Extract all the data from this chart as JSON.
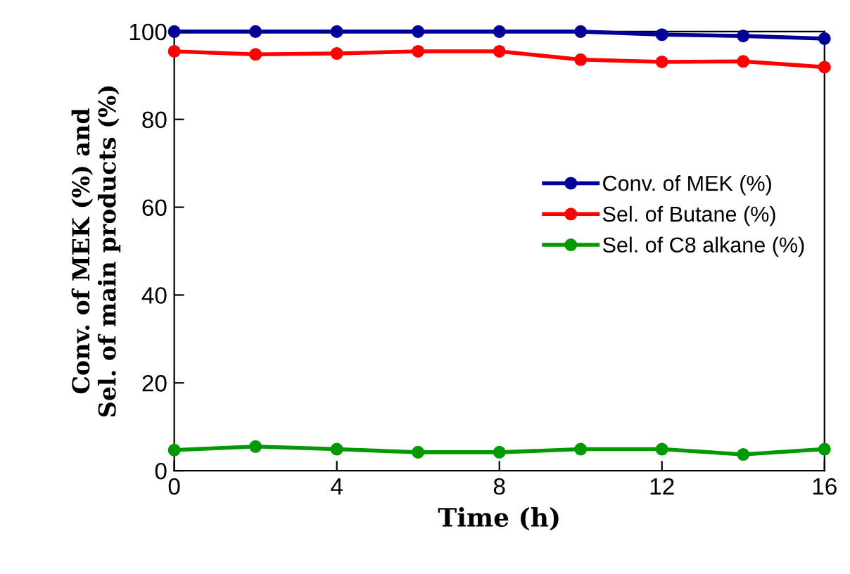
{
  "chart_data": {
    "type": "line",
    "xlabel": "Time (h)",
    "ylabel": "Conv. of MEK (%) and\nSel. of main products (%)",
    "x": [
      0,
      2,
      4,
      6,
      8,
      10,
      12,
      14,
      16
    ],
    "series": [
      {
        "name": "Conv. of MEK (%)",
        "color": "#000099",
        "values": [
          100,
          100,
          100,
          100,
          100,
          100,
          99.3,
          99,
          98.4
        ]
      },
      {
        "name": "Sel. of Butane (%)",
        "color": "#ff0000",
        "values": [
          95.5,
          94.8,
          95,
          95.5,
          95.5,
          93.6,
          93.1,
          93.2,
          91.9
        ]
      },
      {
        "name": "Sel. of C8 alkane (%)",
        "color": "#009900",
        "values": [
          4.7,
          5.5,
          4.9,
          4.2,
          4.2,
          4.9,
          4.9,
          3.7,
          4.9
        ]
      }
    ],
    "xlim": [
      0,
      16
    ],
    "ylim": [
      0,
      100
    ],
    "xticks": [
      0,
      4,
      8,
      12,
      16
    ],
    "yticks": [
      0,
      20,
      40,
      60,
      80,
      100
    ],
    "grid": false,
    "legend": "right",
    "marker": "circle",
    "line_style": "solid"
  }
}
